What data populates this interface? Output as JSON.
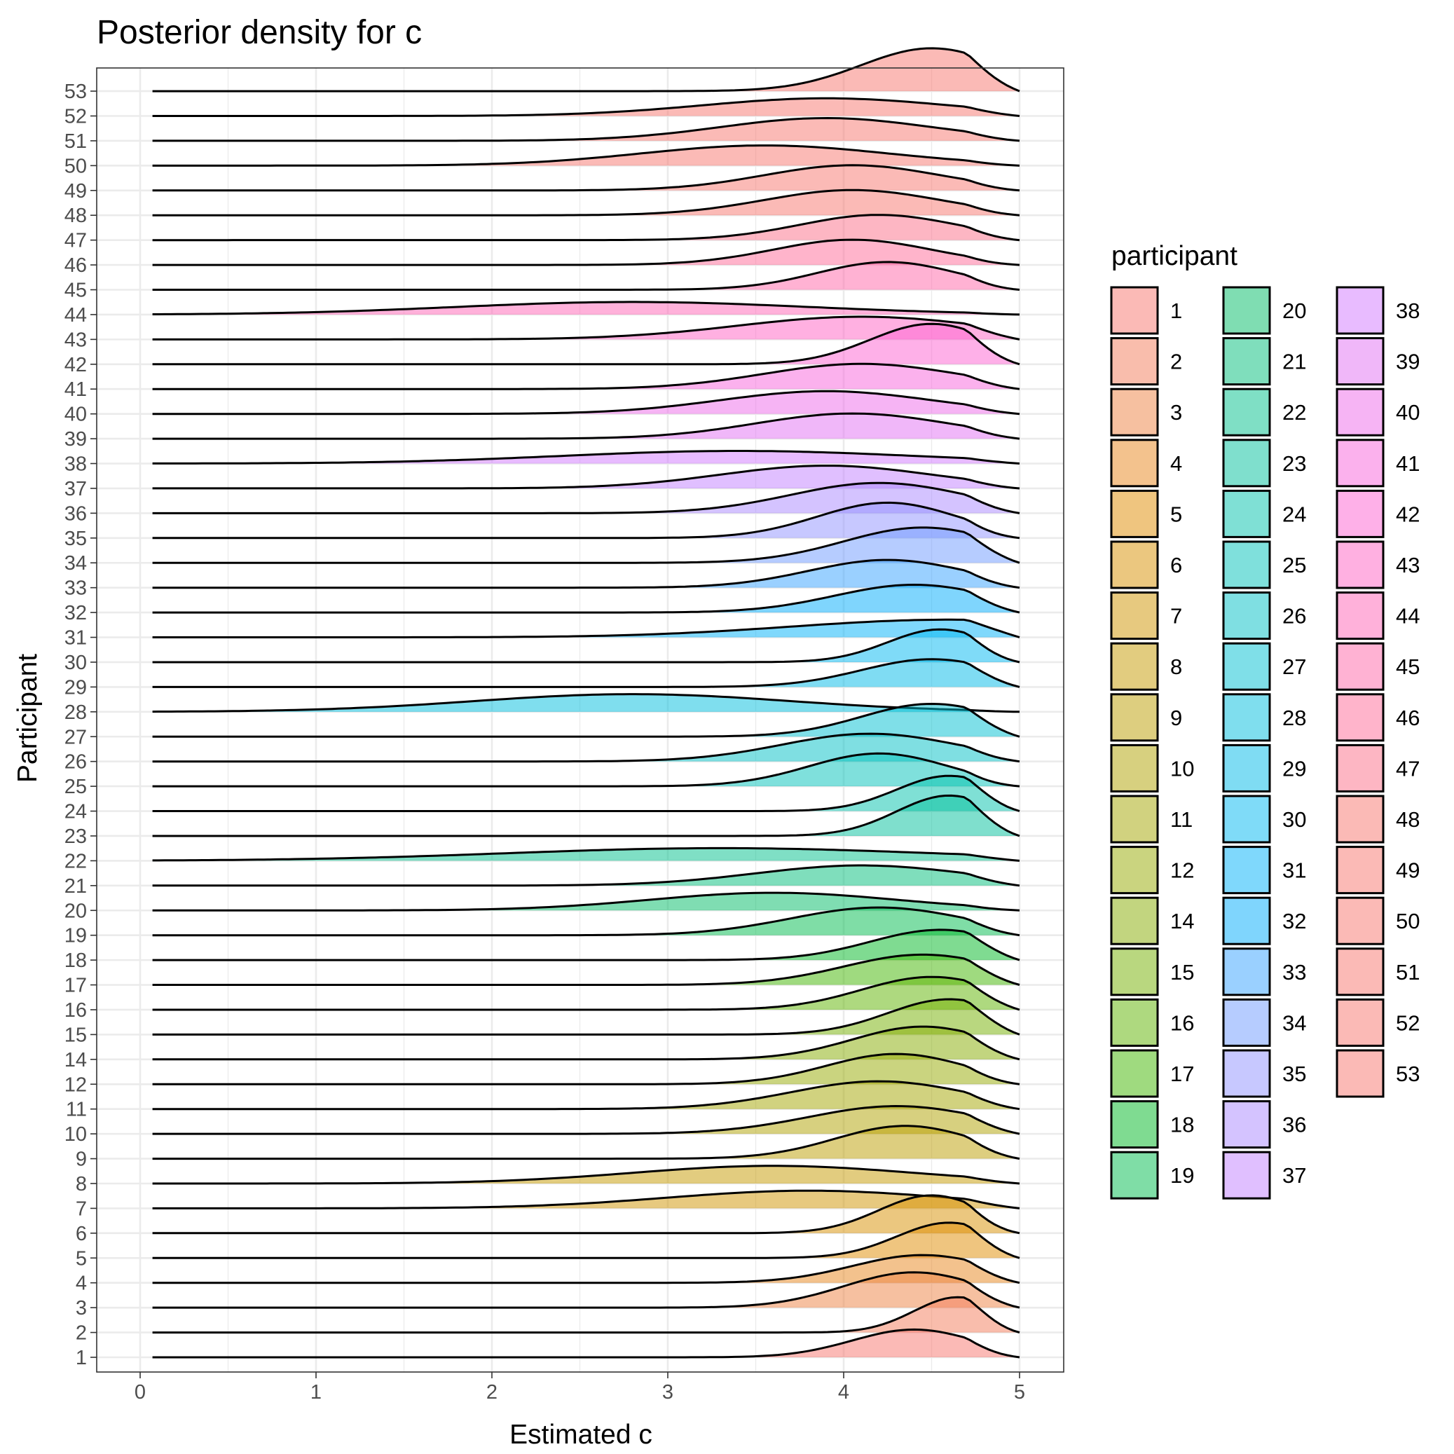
{
  "chart_data": {
    "type": "ridgeline-density",
    "title": "Posterior density for c",
    "xlabel": "Estimated c",
    "ylabel": "Participant",
    "xlim": [
      0,
      5
    ],
    "x_ticks": [
      "0",
      "1",
      "2",
      "3",
      "4",
      "5"
    ],
    "grid": true,
    "legend": {
      "title": "participant",
      "placement": "right",
      "columns": 3
    },
    "participants": [
      "1",
      "2",
      "3",
      "4",
      "5",
      "6",
      "7",
      "8",
      "9",
      "10",
      "11",
      "12",
      "14",
      "15",
      "16",
      "17",
      "18",
      "19",
      "20",
      "21",
      "22",
      "23",
      "24",
      "25",
      "26",
      "27",
      "28",
      "29",
      "30",
      "31",
      "32",
      "33",
      "34",
      "35",
      "36",
      "37",
      "38",
      "39",
      "40",
      "41",
      "42",
      "43",
      "44",
      "45",
      "46",
      "47",
      "48",
      "49",
      "50",
      "51",
      "52",
      "53"
    ],
    "colors": [
      "#F8766D",
      "#F37B59",
      "#ED8141",
      "#E7861B",
      "#E08B00",
      "#D89000",
      "#CF9400",
      "#C59900",
      "#BB9D00",
      "#B0A100",
      "#A3A500",
      "#95A900",
      "#86AC00",
      "#74B000",
      "#5EB300",
      "#3FB600",
      "#00B823",
      "#00BB4D",
      "#00BC66",
      "#00BE7A",
      "#00BF8C",
      "#00C09C",
      "#00C1AB",
      "#00C1B9",
      "#00C0C6",
      "#00BFD2",
      "#00BDDE",
      "#00BAE8",
      "#00B7F2",
      "#00B2FA",
      "#00ACFC",
      "#35A2FF",
      "#6E9AFF",
      "#8F91FF",
      "#AA88FF",
      "#C17FFF",
      "#D277FF",
      "#E170F3",
      "#ED69E9",
      "#F763DC",
      "#FD61D1",
      "#FF61C3",
      "#FF63B5",
      "#FF66A8",
      "#FF6A98",
      "#FC6E88",
      "#F8766D",
      "#F8766D",
      "#F8766D",
      "#F8766D",
      "#F8766D",
      "#F8766D"
    ],
    "modes": [
      4.4,
      4.65,
      4.4,
      4.45,
      4.6,
      4.5,
      3.8,
      3.6,
      4.35,
      4.3,
      4.2,
      4.3,
      4.45,
      4.6,
      4.5,
      4.45,
      4.55,
      4.2,
      3.6,
      4.1,
      3.3,
      4.6,
      4.6,
      4.2,
      4.15,
      4.5,
      2.8,
      4.5,
      4.55,
      4.6,
      4.4,
      4.25,
      4.45,
      4.25,
      4.2,
      3.9,
      3.4,
      4.05,
      3.9,
      4.1,
      4.5,
      4.1,
      2.8,
      4.25,
      4.05,
      4.2,
      4.05,
      4.05,
      3.55,
      3.9,
      3.9,
      4.5
    ],
    "spreads": [
      0.35,
      0.25,
      0.4,
      0.4,
      0.3,
      0.3,
      0.8,
      0.8,
      0.4,
      0.5,
      0.5,
      0.4,
      0.4,
      0.35,
      0.4,
      0.45,
      0.4,
      0.5,
      0.7,
      0.6,
      1.2,
      0.3,
      0.3,
      0.4,
      0.5,
      0.4,
      0.9,
      0.4,
      0.3,
      0.9,
      0.45,
      0.45,
      0.45,
      0.4,
      0.5,
      0.6,
      1.0,
      0.55,
      0.6,
      0.55,
      0.35,
      0.7,
      1.0,
      0.4,
      0.45,
      0.45,
      0.5,
      0.5,
      0.7,
      0.6,
      0.7,
      0.4
    ],
    "peak_heights": [
      0.55,
      0.7,
      0.7,
      0.55,
      0.7,
      0.75,
      0.35,
      0.35,
      0.65,
      0.55,
      0.55,
      0.6,
      0.65,
      0.7,
      0.65,
      0.6,
      0.6,
      0.55,
      0.35,
      0.4,
      0.25,
      0.8,
      0.7,
      0.65,
      0.55,
      0.65,
      0.35,
      0.55,
      0.65,
      0.35,
      0.55,
      0.55,
      0.7,
      0.7,
      0.6,
      0.45,
      0.25,
      0.5,
      0.45,
      0.5,
      0.8,
      0.45,
      0.25,
      0.55,
      0.5,
      0.5,
      0.5,
      0.5,
      0.4,
      0.45,
      0.35,
      0.85
    ]
  }
}
